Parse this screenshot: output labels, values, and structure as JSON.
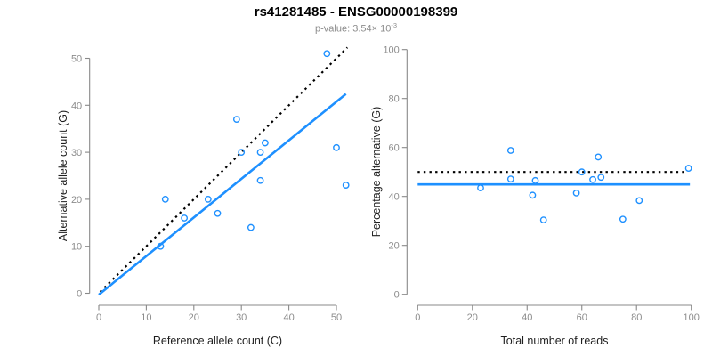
{
  "header": {
    "title": "rs41281485 - ENSG00000198399",
    "p_value_prefix": "p-value: ",
    "p_value_mantissa": "3.54× 10",
    "p_value_exponent": "-3"
  },
  "colors": {
    "points": "#1E90FF",
    "fit_line": "#1E90FF",
    "reference_line": "#000000",
    "axis": "#898989",
    "tick_labels": "#8C8C8C",
    "axis_titles": "#1F1F1F",
    "subtitle": "#8C8C8C"
  },
  "chart_data": [
    {
      "type": "scatter",
      "title": "",
      "xlabel": "Reference allele count (C)",
      "ylabel": "Alternative allele count (G)",
      "xlim": [
        0,
        52
      ],
      "ylim": [
        0,
        51
      ],
      "xticks": [
        0,
        10,
        20,
        30,
        40,
        50
      ],
      "yticks": [
        0,
        10,
        20,
        30,
        40,
        50
      ],
      "grid": false,
      "legend": "none",
      "points": [
        [
          13,
          10
        ],
        [
          14,
          20
        ],
        [
          18,
          16
        ],
        [
          23,
          20
        ],
        [
          25,
          17
        ],
        [
          29,
          37
        ],
        [
          30,
          30
        ],
        [
          32,
          14
        ],
        [
          34,
          24
        ],
        [
          34,
          30
        ],
        [
          35,
          32
        ],
        [
          48,
          51
        ],
        [
          50,
          31
        ],
        [
          52,
          23
        ]
      ],
      "lines": [
        {
          "name": "identity-expected",
          "style": "dotted",
          "color": "#000000",
          "points": [
            [
              0.3,
              0.3
            ],
            [
              52.3,
              52.3
            ]
          ]
        },
        {
          "name": "fitted-trend",
          "style": "solid",
          "color": "#1E90FF",
          "points": [
            [
              0,
              -0.3
            ],
            [
              52,
              42.4
            ]
          ]
        }
      ]
    },
    {
      "type": "scatter",
      "title": "",
      "xlabel": "Total number of reads",
      "ylabel": "Percentage alternative (G)",
      "xlim": [
        0,
        100
      ],
      "ylim": [
        0,
        100
      ],
      "xticks": [
        0,
        20,
        40,
        60,
        80,
        100
      ],
      "yticks": [
        0,
        20,
        40,
        60,
        80,
        100
      ],
      "grid": false,
      "legend": "none",
      "points": [
        [
          23,
          43.5
        ],
        [
          34,
          58.8
        ],
        [
          34,
          47.1
        ],
        [
          42,
          40.5
        ],
        [
          43,
          46.5
        ],
        [
          46,
          30.4
        ],
        [
          58,
          41.4
        ],
        [
          60,
          50.0
        ],
        [
          64,
          46.9
        ],
        [
          66,
          56.1
        ],
        [
          67,
          47.8
        ],
        [
          75,
          30.7
        ],
        [
          81,
          38.3
        ],
        [
          99,
          51.5
        ]
      ],
      "lines": [
        {
          "name": "expected-percentage",
          "style": "dotted",
          "color": "#000000",
          "points": [
            [
              0,
              50
            ],
            [
              98,
              50
            ]
          ]
        },
        {
          "name": "mean-percentage",
          "style": "solid",
          "color": "#1E90FF",
          "points": [
            [
              0,
              44.9
            ],
            [
              99.5,
              44.9
            ]
          ]
        }
      ]
    }
  ]
}
